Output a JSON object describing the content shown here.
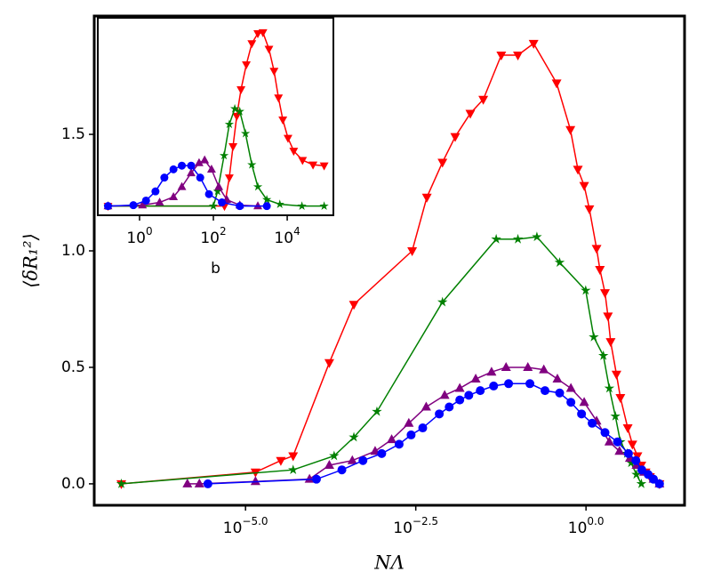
{
  "chart_data": [
    {
      "type": "line",
      "xscale": "log",
      "xlabel": "NΛ",
      "ylabel": "⟨δR₁²⟩",
      "xlim": [
        6e-08,
        28
      ],
      "ylim": [
        -0.092,
        2.008
      ],
      "xticks": [
        {
          "value": 1e-05,
          "label": "10",
          "exponent": "−5.0"
        },
        {
          "value": 0.0031623,
          "label": "10",
          "exponent": "−2.5"
        },
        {
          "value": 1,
          "label": "10",
          "exponent": "0.0"
        }
      ],
      "yticks": [
        {
          "value": 0,
          "label": "0.0"
        },
        {
          "value": 0.5,
          "label": "0.5"
        },
        {
          "value": 1,
          "label": "1.0"
        },
        {
          "value": 1.5,
          "label": "1.5"
        }
      ],
      "series": [
        {
          "color": "#ff0000",
          "marker": "triangle-down",
          "x": [
            1.5e-07,
            1.4e-05,
            3.3e-05,
            5e-05,
            0.00017,
            0.00039,
            0.0028,
            0.0046,
            0.0078,
            0.012,
            0.02,
            0.031,
            0.057,
            0.1,
            0.17,
            0.37,
            0.59,
            0.76,
            0.94,
            1.12,
            1.43,
            1.6,
            1.9,
            2.1,
            2.3,
            2.8,
            3.2,
            4.1,
            4.8,
            5.7,
            6.5,
            7.5,
            8.7,
            12
          ],
          "values": [
            0,
            0.05,
            0.1,
            0.12,
            0.52,
            0.77,
            1.0,
            1.23,
            1.38,
            1.49,
            1.59,
            1.65,
            1.84,
            1.84,
            1.89,
            1.72,
            1.52,
            1.35,
            1.28,
            1.18,
            1.01,
            0.92,
            0.82,
            0.72,
            0.61,
            0.47,
            0.37,
            0.24,
            0.17,
            0.12,
            0.08,
            0.05,
            0.03,
            0
          ]
        },
        {
          "color": "#008000",
          "marker": "star",
          "x": [
            1.5e-07,
            5e-05,
            0.0002,
            0.00039,
            0.00085,
            0.0078,
            0.048,
            0.1,
            0.19,
            0.41,
            0.99,
            1.3,
            1.8,
            2.2,
            2.7,
            3.2,
            4.0,
            4.6,
            5.5,
            6.5
          ],
          "values": [
            0,
            0.06,
            0.12,
            0.2,
            0.31,
            0.78,
            1.05,
            1.05,
            1.06,
            0.95,
            0.83,
            0.63,
            0.55,
            0.41,
            0.29,
            0.18,
            0.13,
            0.09,
            0.04,
            0
          ]
        },
        {
          "color": "#800080",
          "marker": "triangle-up",
          "x": [
            1.4e-06,
            2.1e-06,
            1.4e-05,
            8.7e-05,
            0.00017,
            0.00037,
            0.0008,
            0.0014,
            0.0025,
            0.0045,
            0.0084,
            0.014,
            0.024,
            0.041,
            0.067,
            0.14,
            0.24,
            0.38,
            0.6,
            0.94,
            1.43,
            2.2,
            3.1,
            4.4,
            5.5,
            7.1,
            9.8,
            12
          ],
          "values": [
            0,
            0,
            0.01,
            0.02,
            0.08,
            0.1,
            0.14,
            0.19,
            0.26,
            0.33,
            0.38,
            0.41,
            0.45,
            0.48,
            0.5,
            0.5,
            0.49,
            0.45,
            0.41,
            0.35,
            0.27,
            0.18,
            0.14,
            0.11,
            0.08,
            0.05,
            0.02,
            0
          ]
        },
        {
          "color": "#0000ff",
          "marker": "circle",
          "x": [
            2.8e-06,
            0.00011,
            0.00026,
            0.00053,
            0.001,
            0.0018,
            0.0027,
            0.004,
            0.007,
            0.0098,
            0.014,
            0.019,
            0.028,
            0.044,
            0.073,
            0.15,
            0.25,
            0.41,
            0.6,
            0.86,
            1.23,
            1.9,
            2.9,
            4.2,
            5.4,
            6.6,
            8.2,
            9.8,
            12
          ],
          "values": [
            0,
            0.02,
            0.06,
            0.1,
            0.13,
            0.17,
            0.21,
            0.24,
            0.3,
            0.33,
            0.36,
            0.38,
            0.4,
            0.42,
            0.43,
            0.43,
            0.4,
            0.39,
            0.35,
            0.3,
            0.26,
            0.22,
            0.18,
            0.13,
            0.1,
            0.06,
            0.04,
            0.02,
            0
          ]
        }
      ]
    },
    {
      "type": "line",
      "xscale": "log",
      "xlabel": "b",
      "xlim": [
        0.074,
        178000
      ],
      "ylim": [
        -0.1,
        2.05
      ],
      "xticks": [
        {
          "value": 1,
          "label": "10",
          "exponent": "0"
        },
        {
          "value": 100,
          "label": "10",
          "exponent": "2"
        },
        {
          "value": 10000,
          "label": "10",
          "exponent": "4"
        }
      ],
      "series": [
        {
          "color": "#ff0000",
          "marker": "triangle-down",
          "x": [
            0.14,
            200,
            270,
            340,
            430,
            560,
            780,
            1100,
            1600,
            2200,
            3200,
            4400,
            5800,
            7600,
            10500,
            15000,
            26000,
            50000,
            100000
          ],
          "values": [
            0,
            0,
            0.31,
            0.65,
            0.98,
            1.27,
            1.54,
            1.77,
            1.88,
            1.89,
            1.71,
            1.47,
            1.18,
            0.94,
            0.74,
            0.6,
            0.5,
            0.45,
            0.44
          ]
        },
        {
          "color": "#008000",
          "marker": "star",
          "x": [
            0.14,
            100,
            130,
            195,
            270,
            380,
            520,
            740,
            1100,
            1600,
            2800,
            6300,
            25000,
            100000
          ],
          "values": [
            0,
            0,
            0.16,
            0.55,
            0.89,
            1.06,
            1.03,
            0.79,
            0.45,
            0.21,
            0.07,
            0.02,
            0,
            0
          ]
        },
        {
          "color": "#800080",
          "marker": "triangle-up",
          "x": [
            0.14,
            1.2,
            3.5,
            8.3,
            14,
            25,
            41,
            58,
            89,
            140,
            230,
            520,
            1600
          ],
          "values": [
            0,
            0.01,
            0.04,
            0.1,
            0.21,
            0.36,
            0.47,
            0.5,
            0.4,
            0.21,
            0.07,
            0.01,
            0
          ]
        },
        {
          "color": "#0000ff",
          "marker": "circle",
          "x": [
            0.14,
            0.68,
            1.5,
            2.7,
            4.7,
            8.3,
            14,
            25,
            44,
            76,
            170,
            520,
            2800
          ],
          "values": [
            0,
            0.01,
            0.06,
            0.16,
            0.31,
            0.4,
            0.44,
            0.44,
            0.31,
            0.13,
            0.04,
            0,
            0
          ]
        }
      ]
    }
  ]
}
